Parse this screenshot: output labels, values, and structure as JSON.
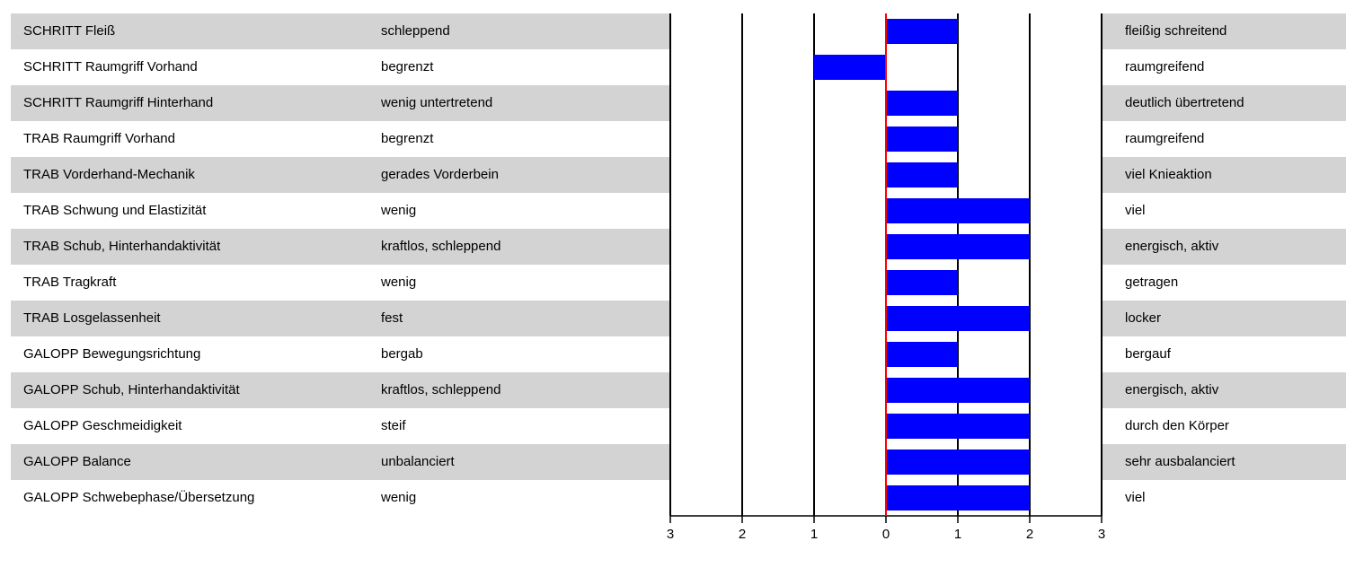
{
  "chart_data": {
    "type": "bar",
    "orientation": "horizontal",
    "xlim": [
      -3,
      3
    ],
    "x_tick_labels": [
      "3",
      "2",
      "1",
      "0",
      "1",
      "2",
      "3"
    ],
    "bar_color": "#0000ff",
    "zero_line_color": "#ff0000",
    "rows": [
      {
        "criterion": "SCHRITT Fleiß",
        "left_label": "schleppend",
        "right_label": "fleißig schreitend",
        "value": 1,
        "left_value": "",
        "right_value": "1"
      },
      {
        "criterion": "SCHRITT Raumgriff Vorhand",
        "left_label": "begrenzt",
        "right_label": "raumgreifend",
        "value": -1,
        "left_value": "1",
        "right_value": ""
      },
      {
        "criterion": "SCHRITT Raumgriff Hinterhand",
        "left_label": "wenig untertretend",
        "right_label": "deutlich übertretend",
        "value": 1,
        "left_value": "",
        "right_value": "1"
      },
      {
        "criterion": "TRAB Raumgriff Vorhand",
        "left_label": "begrenzt",
        "right_label": "raumgreifend",
        "value": 1,
        "left_value": "",
        "right_value": "1"
      },
      {
        "criterion": "TRAB Vorderhand-Mechanik",
        "left_label": "gerades Vorderbein",
        "right_label": "viel Knieaktion",
        "value": 1,
        "left_value": "",
        "right_value": "1"
      },
      {
        "criterion": "TRAB Schwung und Elastizität",
        "left_label": "wenig",
        "right_label": "viel",
        "value": 2,
        "left_value": "",
        "right_value": "2"
      },
      {
        "criterion": "TRAB Schub, Hinterhandaktivität",
        "left_label": "kraftlos, schleppend",
        "right_label": "energisch, aktiv",
        "value": 2,
        "left_value": "",
        "right_value": "2"
      },
      {
        "criterion": "TRAB Tragkraft",
        "left_label": "wenig",
        "right_label": "getragen",
        "value": 1,
        "left_value": "",
        "right_value": "1"
      },
      {
        "criterion": "TRAB Losgelassenheit",
        "left_label": "fest",
        "right_label": "locker",
        "value": 2,
        "left_value": "",
        "right_value": "2"
      },
      {
        "criterion": "GALOPP Bewegungsrichtung",
        "left_label": "bergab",
        "right_label": "bergauf",
        "value": 1,
        "left_value": "",
        "right_value": "1"
      },
      {
        "criterion": "GALOPP Schub, Hinterhandaktivität",
        "left_label": "kraftlos, schleppend",
        "right_label": "energisch, aktiv",
        "value": 2,
        "left_value": "",
        "right_value": "2"
      },
      {
        "criterion": "GALOPP Geschmeidigkeit",
        "left_label": "steif",
        "right_label": "durch den Körper",
        "value": 2,
        "left_value": "",
        "right_value": "2"
      },
      {
        "criterion": "GALOPP Balance",
        "left_label": "unbalanciert",
        "right_label": "sehr ausbalanciert",
        "value": 2,
        "left_value": "",
        "right_value": "2"
      },
      {
        "criterion": "GALOPP Schwebephase/Übersetzung",
        "left_label": "wenig",
        "right_label": "viel",
        "value": 2,
        "left_value": "",
        "right_value": "2"
      }
    ]
  }
}
